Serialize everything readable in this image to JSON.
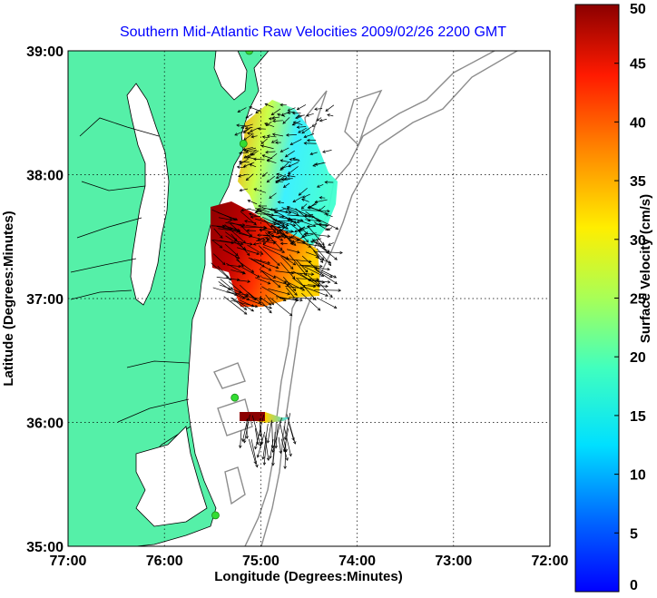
{
  "title": "Southern Mid-Atlantic Raw Velocities 2009/02/26 2200 GMT",
  "axes": {
    "xlabel": "Longitude (Degrees:Minutes)",
    "ylabel": "Latitude (Degrees:Minutes)",
    "x_ticks": [
      "77:00",
      "76:00",
      "75:00",
      "74:00",
      "73:00",
      "72:00"
    ],
    "y_ticks": [
      "39:00",
      "38:00",
      "37:00",
      "36:00",
      "35:00"
    ],
    "xlim": [
      -77,
      -72
    ],
    "ylim": [
      35,
      39
    ],
    "grid": "dotted"
  },
  "colorbar": {
    "label": "Surface Velocity (cm/s)",
    "ticks": [
      "0",
      "5",
      "10",
      "15",
      "20",
      "25",
      "30",
      "35",
      "40",
      "45",
      "50"
    ],
    "min": 0,
    "max": 50,
    "colormap": "jet"
  },
  "colors": {
    "land": "#55f0a8",
    "coastline": "#000000",
    "bathymetry": "#8c8c8c",
    "station": "#33dd33",
    "title": "#0000ff"
  },
  "stations": [
    {
      "lon": -75.12,
      "lat": 39.0
    },
    {
      "lon": -75.18,
      "lat": 38.25
    },
    {
      "lon": -75.27,
      "lat": 36.2
    },
    {
      "lon": -75.47,
      "lat": 35.25
    }
  ]
}
